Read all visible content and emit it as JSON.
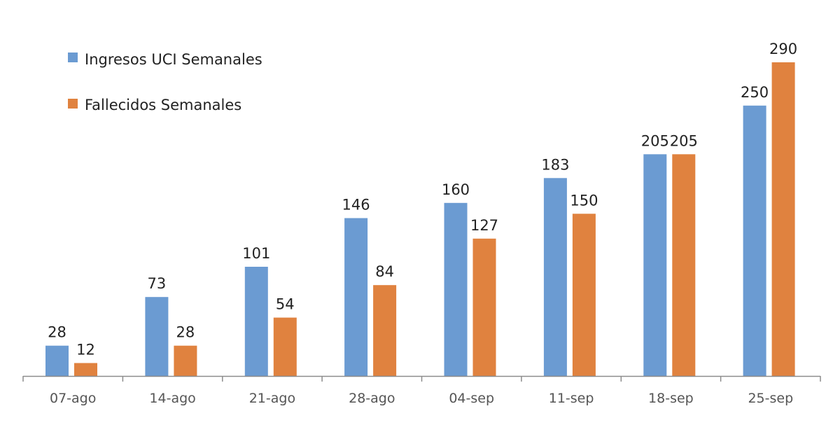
{
  "chart_data": {
    "type": "bar",
    "categories": [
      "07-ago",
      "14-ago",
      "21-ago",
      "28-ago",
      "04-sep",
      "11-sep",
      "18-sep",
      "25-sep"
    ],
    "series": [
      {
        "name": "Ingresos UCI Semanales",
        "values": [
          28,
          73,
          101,
          146,
          160,
          183,
          205,
          250
        ],
        "color": "#6b9bd2"
      },
      {
        "name": "Fallecidos Semanales",
        "values": [
          12,
          28,
          54,
          84,
          127,
          150,
          205,
          290
        ],
        "color": "#e0823f"
      }
    ],
    "ylim": [
      0,
      290
    ],
    "grid": false,
    "y_axis_visible": false,
    "legend": "top-left",
    "data_labels": true
  }
}
